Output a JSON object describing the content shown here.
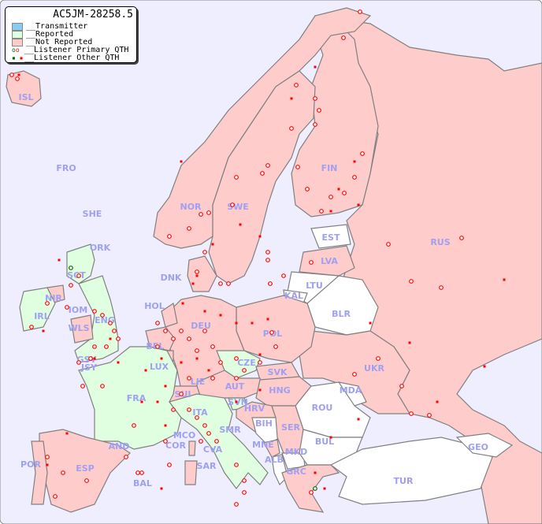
{
  "legend": {
    "title": "AC5JM-28258.5",
    "items": [
      {
        "label": "__Transmitter",
        "color": "#88ccf0"
      },
      {
        "label": "__Reported",
        "color": "#e0ffe0"
      },
      {
        "label": "__Not Reported",
        "color": "#ffcccc"
      },
      {
        "label": "__Listener Primary QTH",
        "marker": "circle"
      },
      {
        "label": "__Listener Other QTH",
        "marker": "square"
      }
    ]
  },
  "colors": {
    "sea": "#eeeeff",
    "reported": "#e0ffe0",
    "not_reported": "#ffcccc",
    "no_data": "#ffffff",
    "border": "#808080",
    "listener": "#ff0000",
    "listener_reported": "#006600",
    "label": "#a0a0f0"
  },
  "countries": [
    {
      "code": "ISL",
      "status": "not_reported"
    },
    {
      "code": "FRO",
      "status": "not_reported"
    },
    {
      "code": "SHE",
      "status": "not_reported"
    },
    {
      "code": "ORK",
      "status": "reported"
    },
    {
      "code": "NOR",
      "status": "not_reported"
    },
    {
      "code": "SWE",
      "status": "not_reported"
    },
    {
      "code": "FIN",
      "status": "not_reported"
    },
    {
      "code": "RUS",
      "status": "not_reported"
    },
    {
      "code": "EST",
      "status": "no_data"
    },
    {
      "code": "LVA",
      "status": "not_reported"
    },
    {
      "code": "LTU",
      "status": "no_data"
    },
    {
      "code": "KAL",
      "status": "no_data"
    },
    {
      "code": "BLR",
      "status": "no_data"
    },
    {
      "code": "DNK",
      "status": "not_reported"
    },
    {
      "code": "SCT",
      "status": "reported"
    },
    {
      "code": "NIR",
      "status": "not_reported"
    },
    {
      "code": "IRL",
      "status": "reported"
    },
    {
      "code": "IOM",
      "status": "reported"
    },
    {
      "code": "ENG",
      "status": "reported"
    },
    {
      "code": "WLS",
      "status": "not_reported"
    },
    {
      "code": "GSY",
      "status": "reported"
    },
    {
      "code": "JSY",
      "status": "reported"
    },
    {
      "code": "HOL",
      "status": "not_reported"
    },
    {
      "code": "BEL",
      "status": "not_reported"
    },
    {
      "code": "LUX",
      "status": "not_reported"
    },
    {
      "code": "DEU",
      "status": "not_reported"
    },
    {
      "code": "POL",
      "status": "not_reported"
    },
    {
      "code": "CZE",
      "status": "reported"
    },
    {
      "code": "SVK",
      "status": "not_reported"
    },
    {
      "code": "UKR",
      "status": "not_reported"
    },
    {
      "code": "MDA",
      "status": "no_data"
    },
    {
      "code": "FRA",
      "status": "reported"
    },
    {
      "code": "SUI",
      "status": "not_reported"
    },
    {
      "code": "LIE",
      "status": "not_reported"
    },
    {
      "code": "AUT",
      "status": "not_reported"
    },
    {
      "code": "HNG",
      "status": "not_reported"
    },
    {
      "code": "ROU",
      "status": "no_data"
    },
    {
      "code": "SVN",
      "status": "reported"
    },
    {
      "code": "HRV",
      "status": "not_reported"
    },
    {
      "code": "ITA",
      "status": "reported"
    },
    {
      "code": "SMR",
      "status": "reported"
    },
    {
      "code": "BIH",
      "status": "no_data"
    },
    {
      "code": "SER",
      "status": "not_reported"
    },
    {
      "code": "MCO",
      "status": "reported"
    },
    {
      "code": "AND",
      "status": "not_reported"
    },
    {
      "code": "COR",
      "status": "not_reported"
    },
    {
      "code": "CVA",
      "status": "reported"
    },
    {
      "code": "MNE",
      "status": "not_reported"
    },
    {
      "code": "BUL",
      "status": "no_data"
    },
    {
      "code": "GEO",
      "status": "no_data"
    },
    {
      "code": "POR",
      "status": "not_reported"
    },
    {
      "code": "ESP",
      "status": "not_reported"
    },
    {
      "code": "SAR",
      "status": "not_reported"
    },
    {
      "code": "ALB",
      "status": "no_data"
    },
    {
      "code": "MKD",
      "status": "no_data"
    },
    {
      "code": "GRC",
      "status": "not_reported"
    },
    {
      "code": "TUR",
      "status": "no_data"
    },
    {
      "code": "BAL",
      "status": "not_reported"
    }
  ]
}
